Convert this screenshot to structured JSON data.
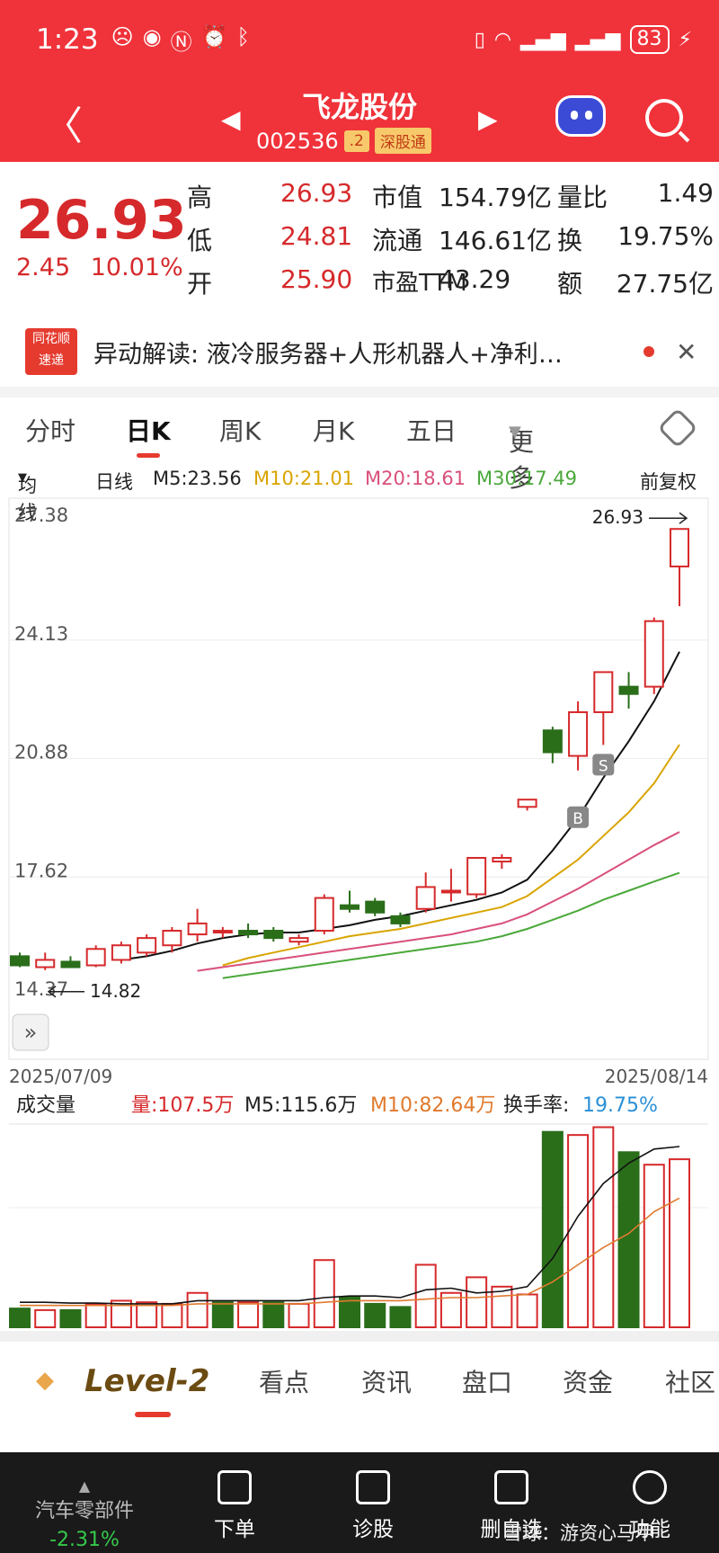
{
  "status_bar": {
    "time": "1:23",
    "battery": "83"
  },
  "header": {
    "title": "飞龙股份",
    "code": "002536",
    "tag_level": ".2",
    "tag_market": "深股通"
  },
  "quote": {
    "price": "26.93",
    "change": "2.45",
    "change_pct": "10.01%",
    "rows": [
      {
        "l1": "高",
        "v1": "26.93",
        "l2": "市值",
        "v2": "154.79亿",
        "l3": "量比",
        "v3": "1.49"
      },
      {
        "l1": "低",
        "v1": "24.81",
        "l2": "流通",
        "v2": "146.61亿",
        "l3": "换",
        "v3": "19.75%"
      },
      {
        "l1": "开",
        "v1": "25.90",
        "l2": "市盈TTM",
        "v2": "43.29",
        "l3": "额",
        "v3": "27.75亿"
      }
    ]
  },
  "alert": {
    "logo": "同花顺 速递",
    "text": "异动解读:  液冷服务器+人形机器人+净利…"
  },
  "tabs": [
    "分时",
    "日K",
    "周K",
    "月K",
    "五日",
    "更多"
  ],
  "ma_legend": {
    "selector": "均线",
    "period": "日线",
    "m5": "M5:23.56",
    "m10": "M10:21.01",
    "m20": "M20:18.61",
    "m30": "M30:17.49",
    "adjust": "前复权"
  },
  "colors": {
    "up": "#d6292b",
    "down": "#2a6e1a",
    "m5": "#111111",
    "m10": "#d9a400",
    "m20": "#d9507a",
    "m30": "#4aa83a",
    "header": "#f0323a"
  },
  "chart_data": {
    "type": "candlestick",
    "y_ticks": [
      "27.38",
      "24.13",
      "20.88",
      "17.62",
      "14.37"
    ],
    "ylim": [
      14.37,
      27.38
    ],
    "date_start": "2025/07/09",
    "date_end": "2025/08/14",
    "max_label": "26.93",
    "min_label": "14.82",
    "marker_b": "B",
    "marker_s": "S",
    "candles": [
      {
        "o": 15.2,
        "h": 15.3,
        "l": 14.9,
        "c": 14.95
      },
      {
        "o": 14.9,
        "h": 15.3,
        "l": 14.82,
        "c": 15.1
      },
      {
        "o": 15.05,
        "h": 15.2,
        "l": 14.9,
        "c": 14.9
      },
      {
        "o": 14.95,
        "h": 15.5,
        "l": 14.9,
        "c": 15.4
      },
      {
        "o": 15.1,
        "h": 15.6,
        "l": 15.0,
        "c": 15.5
      },
      {
        "o": 15.3,
        "h": 15.8,
        "l": 15.2,
        "c": 15.7
      },
      {
        "o": 15.5,
        "h": 16.0,
        "l": 15.3,
        "c": 15.9
      },
      {
        "o": 15.8,
        "h": 16.5,
        "l": 15.6,
        "c": 16.1
      },
      {
        "o": 15.9,
        "h": 16.0,
        "l": 15.7,
        "c": 15.9
      },
      {
        "o": 15.9,
        "h": 16.1,
        "l": 15.7,
        "c": 15.8
      },
      {
        "o": 15.9,
        "h": 16.0,
        "l": 15.6,
        "c": 15.7
      },
      {
        "o": 15.6,
        "h": 15.8,
        "l": 15.5,
        "c": 15.7
      },
      {
        "o": 15.9,
        "h": 16.9,
        "l": 15.8,
        "c": 16.8
      },
      {
        "o": 16.6,
        "h": 17.0,
        "l": 16.4,
        "c": 16.5
      },
      {
        "o": 16.7,
        "h": 16.8,
        "l": 16.3,
        "c": 16.4
      },
      {
        "o": 16.3,
        "h": 16.4,
        "l": 16.0,
        "c": 16.1
      },
      {
        "o": 16.5,
        "h": 17.5,
        "l": 16.4,
        "c": 17.1
      },
      {
        "o": 17.0,
        "h": 17.6,
        "l": 16.7,
        "c": 17.0
      },
      {
        "o": 16.9,
        "h": 17.9,
        "l": 16.8,
        "c": 17.9
      },
      {
        "o": 17.8,
        "h": 18.0,
        "l": 17.6,
        "c": 17.9
      },
      {
        "o": 19.3,
        "h": 19.5,
        "l": 19.2,
        "c": 19.5
      },
      {
        "o": 21.4,
        "h": 21.5,
        "l": 20.5,
        "c": 20.8
      },
      {
        "o": 20.7,
        "h": 22.2,
        "l": 20.3,
        "c": 21.9
      },
      {
        "o": 21.9,
        "h": 23.0,
        "l": 21.0,
        "c": 23.0
      },
      {
        "o": 22.6,
        "h": 23.0,
        "l": 22.0,
        "c": 22.4
      },
      {
        "o": 22.6,
        "h": 24.5,
        "l": 22.4,
        "c": 24.4
      },
      {
        "o": 25.9,
        "h": 26.93,
        "l": 24.81,
        "c": 26.93
      }
    ],
    "ma5": [
      null,
      null,
      null,
      null,
      15.1,
      15.2,
      15.35,
      15.55,
      15.7,
      15.8,
      15.85,
      15.85,
      15.95,
      16.05,
      16.2,
      16.3,
      16.45,
      16.6,
      16.75,
      16.95,
      17.3,
      18.1,
      19.0,
      20.1,
      21.1,
      22.2,
      23.56
    ],
    "ma10": [
      null,
      null,
      null,
      null,
      null,
      null,
      null,
      null,
      14.95,
      15.15,
      15.3,
      15.45,
      15.6,
      15.75,
      15.85,
      15.95,
      16.1,
      16.25,
      16.4,
      16.55,
      16.85,
      17.35,
      17.85,
      18.5,
      19.15,
      19.95,
      21.01
    ],
    "ma20": [
      null,
      null,
      null,
      null,
      null,
      null,
      null,
      14.8,
      14.9,
      15.0,
      15.1,
      15.2,
      15.3,
      15.4,
      15.5,
      15.6,
      15.7,
      15.8,
      15.95,
      16.1,
      16.35,
      16.7,
      17.05,
      17.45,
      17.85,
      18.25,
      18.61
    ],
    "ma30": [
      null,
      null,
      null,
      null,
      null,
      null,
      null,
      null,
      14.6,
      14.7,
      14.8,
      14.9,
      15.0,
      15.1,
      15.2,
      15.3,
      15.4,
      15.5,
      15.6,
      15.75,
      15.95,
      16.2,
      16.45,
      16.75,
      17.0,
      17.25,
      17.49
    ]
  },
  "volume": {
    "selector": "成交量",
    "vol": "量:107.5万",
    "m5": "M5:115.6万",
    "m10": "M10:82.64万",
    "turnover_label": "换手率:",
    "turnover": "19.75%",
    "bars": [
      12,
      11,
      11,
      15,
      17,
      16,
      15,
      22,
      16,
      16,
      16,
      15,
      43,
      19,
      15,
      13,
      40,
      22,
      32,
      26,
      21,
      125,
      123,
      128,
      112,
      104,
      107.5
    ],
    "up": [
      false,
      true,
      false,
      true,
      true,
      true,
      true,
      true,
      false,
      true,
      false,
      true,
      true,
      false,
      false,
      false,
      true,
      true,
      true,
      true,
      true,
      false,
      true,
      true,
      false,
      true,
      true
    ],
    "m5_line": [
      16,
      16,
      15.5,
      15.5,
      15,
      15,
      15,
      17,
      17,
      17,
      17,
      17,
      19,
      20,
      20,
      19,
      24,
      25,
      22,
      23,
      26,
      44,
      71,
      92,
      105,
      114,
      115.6
    ],
    "m10_line": [
      14,
      14,
      14,
      14,
      14,
      14,
      14,
      15,
      15,
      15,
      15,
      15,
      16,
      17,
      17,
      17,
      18,
      19,
      19,
      20,
      21,
      29,
      40,
      51,
      60,
      74,
      82.64
    ]
  },
  "bottom_tabs": [
    "Level-2",
    "看点",
    "资讯",
    "盘口",
    "资金",
    "社区"
  ],
  "dock": {
    "sector_name": "汽车零部件",
    "sector_change": "-2.31%",
    "items": [
      "下单",
      "诊股",
      "删自选",
      "功能"
    ],
    "watermark": "雪球：游资心马甲"
  }
}
